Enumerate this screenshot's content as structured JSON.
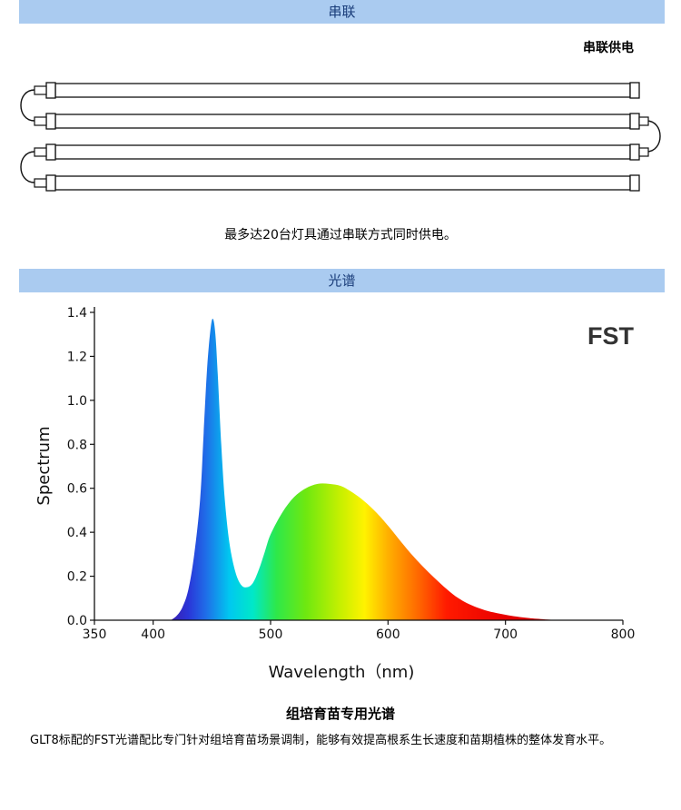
{
  "serial_section": {
    "header": "串联",
    "subtitle": "串联供电",
    "caption": "最多达20台灯具通过串联方式同时供电。"
  },
  "spectrum_section": {
    "header": "光谱",
    "chart_title": "组培育苗专用光谱",
    "description": "GLT8标配的FST光谱配比专门针对组培育苗场景调制，能够有效提高根系生长速度和苗期植株的整体发育水平。"
  },
  "chart_data": {
    "type": "area",
    "title": "",
    "annotation": "FST",
    "xlabel": "Wavelength（nm)",
    "ylabel": "Spectrum",
    "xlim": [
      350,
      800
    ],
    "ylim": [
      0,
      1.4
    ],
    "x_ticks": [
      350,
      400,
      500,
      600,
      700,
      800
    ],
    "y_ticks": [
      0.0,
      0.2,
      0.4,
      0.6,
      0.8,
      1.0,
      1.2,
      1.4
    ],
    "x_tick_labels": [
      "350",
      "400",
      "500",
      "600",
      "700",
      "800"
    ],
    "y_tick_labels": [
      "0.0",
      "0.2",
      "0.4",
      "0.6",
      "0.8",
      "1.0",
      "1.2",
      "1.4"
    ],
    "grid": false,
    "fill": "visible-spectrum gradient",
    "x": [
      415,
      420,
      425,
      430,
      435,
      440,
      443,
      446,
      449,
      451,
      453,
      455,
      458,
      461,
      465,
      470,
      475,
      480,
      485,
      490,
      495,
      500,
      510,
      520,
      530,
      540,
      550,
      560,
      570,
      580,
      590,
      600,
      620,
      640,
      660,
      680,
      700,
      720,
      745
    ],
    "y": [
      0.0,
      0.02,
      0.06,
      0.14,
      0.3,
      0.55,
      0.85,
      1.15,
      1.33,
      1.37,
      1.3,
      1.12,
      0.8,
      0.55,
      0.35,
      0.22,
      0.16,
      0.15,
      0.17,
      0.23,
      0.31,
      0.39,
      0.49,
      0.56,
      0.6,
      0.62,
      0.62,
      0.61,
      0.58,
      0.54,
      0.49,
      0.43,
      0.3,
      0.19,
      0.1,
      0.05,
      0.025,
      0.01,
      0.0
    ]
  }
}
